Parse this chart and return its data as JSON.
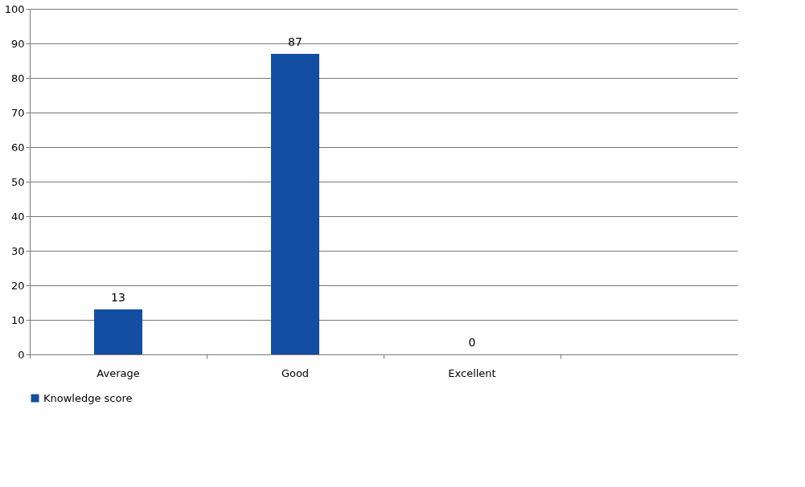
{
  "chart_data": {
    "type": "bar",
    "categories": [
      "Average",
      "Good",
      "Excellent",
      null
    ],
    "series": [
      {
        "name": "Knowledge score",
        "color": "#134ea3",
        "values": [
          13,
          87,
          0,
          null
        ]
      }
    ],
    "ylim": [
      0,
      100
    ],
    "yticks": [
      0,
      10,
      20,
      30,
      40,
      50,
      60,
      70,
      80,
      90,
      100
    ],
    "grid": "y",
    "legend": "bottom",
    "data_labels": true
  }
}
